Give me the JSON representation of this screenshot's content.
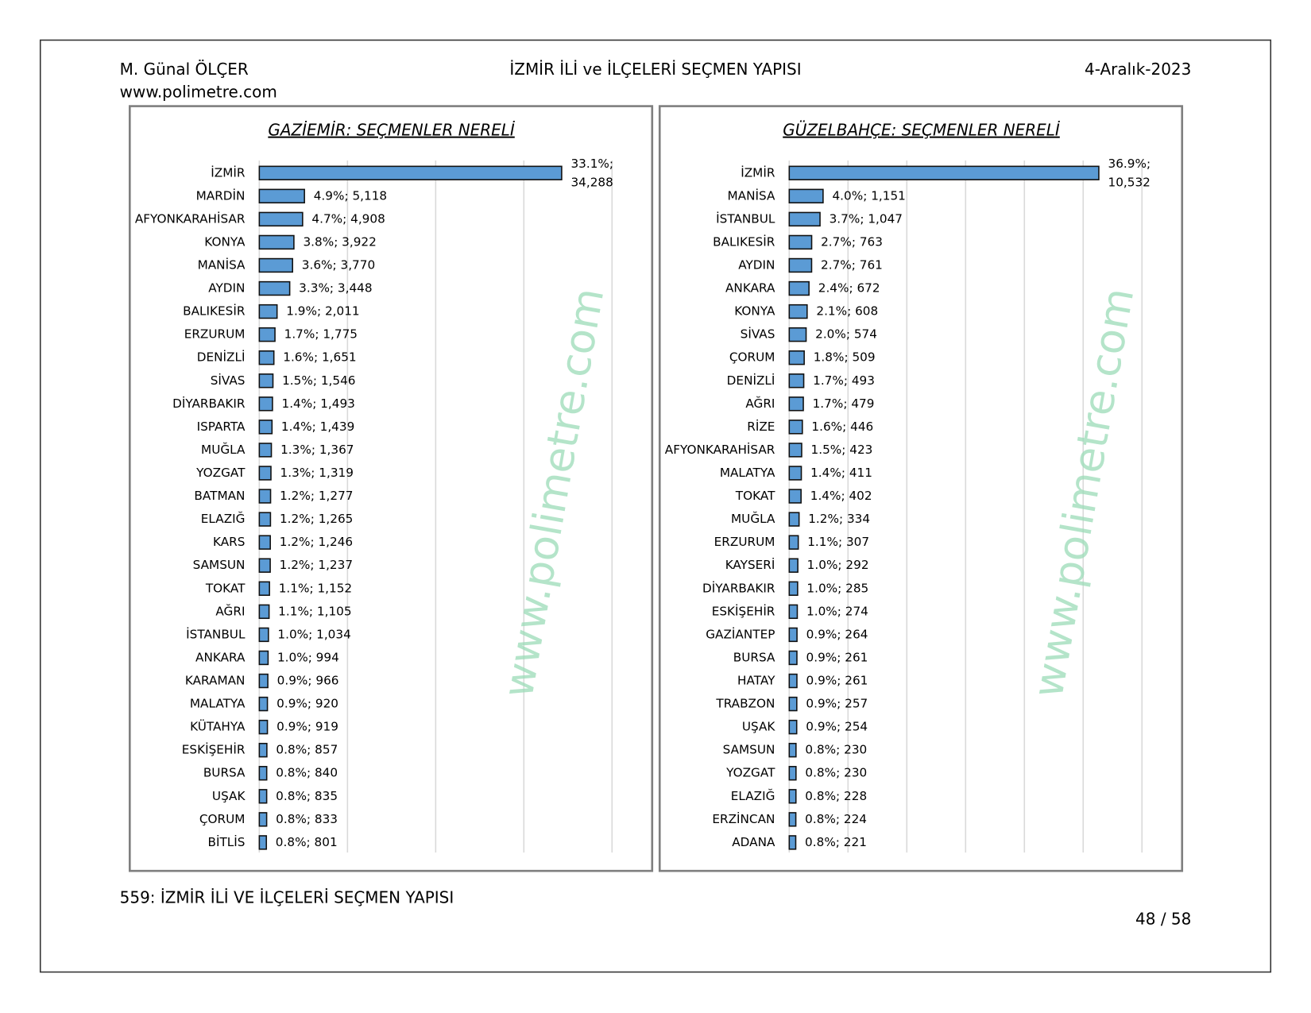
{
  "header": {
    "author": "M. Günal ÖLÇER",
    "website": "www.polimetre.com",
    "title": "İZMİR İLİ ve İLÇELERİ SEÇMEN YAPISI",
    "date": "4-Aralık-2023"
  },
  "footer": {
    "caption": "559: İZMİR İLİ VE İLÇELERİ SEÇMEN YAPISI",
    "page": "48 / 58"
  },
  "chart_data": [
    {
      "type": "bar",
      "orientation": "horizontal",
      "title": "GAZİEMİR: SEÇMENLER NERELİ",
      "watermark": "www.polimetre.com",
      "categories": [
        "İZMİR",
        "MARDİN",
        "AFYONKARAHİSAR",
        "KONYA",
        "MANİSA",
        "AYDIN",
        "BALIKESİR",
        "ERZURUM",
        "DENİZLİ",
        "SİVAS",
        "DİYARBAKIR",
        "ISPARTA",
        "MUĞLA",
        "YOZGAT",
        "BATMAN",
        "ELAZIĞ",
        "KARS",
        "SAMSUN",
        "TOKAT",
        "AĞRI",
        "İSTANBUL",
        "ANKARA",
        "KARAMAN",
        "MALATYA",
        "KÜTAHYA",
        "ESKİŞEHİR",
        "BURSA",
        "UŞAK",
        "ÇORUM",
        "BİTLİS"
      ],
      "values": [
        34288,
        5118,
        4908,
        3922,
        3770,
        3448,
        2011,
        1775,
        1651,
        1546,
        1493,
        1439,
        1367,
        1319,
        1277,
        1265,
        1246,
        1237,
        1152,
        1105,
        1034,
        994,
        966,
        920,
        919,
        857,
        840,
        835,
        833,
        801
      ],
      "percents": [
        33.1,
        4.9,
        4.7,
        3.8,
        3.6,
        3.3,
        1.9,
        1.7,
        1.6,
        1.5,
        1.4,
        1.4,
        1.3,
        1.3,
        1.2,
        1.2,
        1.2,
        1.2,
        1.1,
        1.1,
        1.0,
        1.0,
        0.9,
        0.9,
        0.9,
        0.8,
        0.8,
        0.8,
        0.8,
        0.8
      ],
      "value_labels": [
        "33.1%; 34,288",
        "4.9%; 5,118",
        "4.7%; 4,908",
        "3.8%; 3,922",
        "3.6%; 3,770",
        "3.3%; 3,448",
        "1.9%; 2,011",
        "1.7%; 1,775",
        "1.6%; 1,651",
        "1.5%; 1,546",
        "1.4%; 1,493",
        "1.4%; 1,439",
        "1.3%; 1,367",
        "1.3%; 1,319",
        "1.2%; 1,277",
        "1.2%; 1,265",
        "1.2%; 1,246",
        "1.2%; 1,237",
        "1.1%; 1,152",
        "1.1%; 1,105",
        "1.0%; 1,034",
        "1.0%; 994",
        "0.9%; 966",
        "0.9%; 920",
        "0.9%; 919",
        "0.8%; 857",
        "0.8%; 840",
        "0.8%; 835",
        "0.8%; 833",
        "0.8%; 801"
      ],
      "color": "#5b9bd5",
      "xlim": [
        0,
        40000
      ],
      "xticks": [
        0,
        10000,
        20000,
        30000,
        40000
      ],
      "grid": true
    },
    {
      "type": "bar",
      "orientation": "horizontal",
      "title": "GÜZELBAHÇE: SEÇMENLER NERELİ",
      "watermark": "www.polimetre.com",
      "categories": [
        "İZMİR",
        "MANİSA",
        "İSTANBUL",
        "BALIKESİR",
        "AYDIN",
        "ANKARA",
        "KONYA",
        "SİVAS",
        "ÇORUM",
        "DENİZLİ",
        "AĞRI",
        "RİZE",
        "AFYONKARAHİSAR",
        "MALATYA",
        "TOKAT",
        "MUĞLA",
        "ERZURUM",
        "KAYSERİ",
        "DİYARBAKIR",
        "ESKİŞEHİR",
        "GAZİANTEP",
        "BURSA",
        "HATAY",
        "TRABZON",
        "UŞAK",
        "SAMSUN",
        "YOZGAT",
        "ELAZIĞ",
        "ERZİNCAN",
        "ADANA"
      ],
      "values": [
        10532,
        1151,
        1047,
        763,
        761,
        672,
        608,
        574,
        509,
        493,
        479,
        446,
        423,
        411,
        402,
        334,
        307,
        292,
        285,
        274,
        264,
        261,
        261,
        257,
        254,
        230,
        230,
        228,
        224,
        221
      ],
      "percents": [
        36.9,
        4.0,
        3.7,
        2.7,
        2.7,
        2.4,
        2.1,
        2.0,
        1.8,
        1.7,
        1.7,
        1.6,
        1.5,
        1.4,
        1.4,
        1.2,
        1.1,
        1.0,
        1.0,
        1.0,
        0.9,
        0.9,
        0.9,
        0.9,
        0.9,
        0.8,
        0.8,
        0.8,
        0.8,
        0.8
      ],
      "value_labels": [
        "36.9%; 10,532",
        "4.0%; 1,151",
        "3.7%; 1,047",
        "2.7%; 763",
        "2.7%; 761",
        "2.4%; 672",
        "2.1%; 608",
        "2.0%; 574",
        "1.8%; 509",
        "1.7%; 493",
        "1.7%; 479",
        "1.6%; 446",
        "1.5%; 423",
        "1.4%; 411",
        "1.4%; 402",
        "1.2%; 334",
        "1.1%; 307",
        "1.0%; 292",
        "1.0%; 285",
        "1.0%; 274",
        "0.9%; 264",
        "0.9%; 261",
        "0.9%; 261",
        "0.9%; 257",
        "0.9%; 254",
        "0.8%; 230",
        "0.8%; 230",
        "0.8%; 228",
        "0.8%; 224",
        "0.8%; 221"
      ],
      "color": "#5b9bd5",
      "xlim": [
        0,
        12000
      ],
      "xticks": [
        0,
        2000,
        4000,
        6000,
        8000,
        10000,
        12000
      ],
      "grid": true
    }
  ]
}
